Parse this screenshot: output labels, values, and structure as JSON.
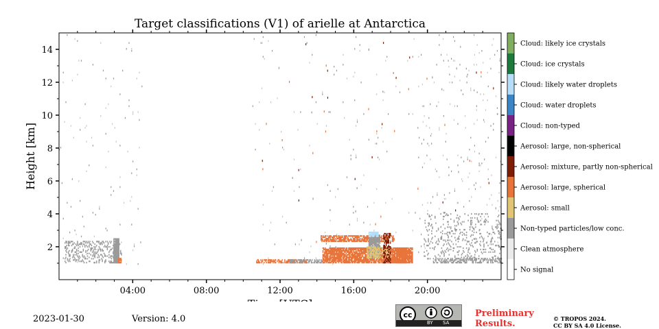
{
  "chart_data": {
    "type": "heatmap",
    "title": "Target classifications (V1) of arielle at Antarctica",
    "xlabel": "Time [UTC]",
    "ylabel": "Height [km]",
    "xlim_hours": [
      0,
      24
    ],
    "ylim_km": [
      0,
      15
    ],
    "xticks": [
      {
        "value": 4,
        "label": "04:00"
      },
      {
        "value": 8,
        "label": "08:00"
      },
      {
        "value": 12,
        "label": "12:00"
      },
      {
        "value": 16,
        "label": "16:00"
      },
      {
        "value": 20,
        "label": "20:00"
      }
    ],
    "yticks": [
      {
        "value": 2,
        "label": "2"
      },
      {
        "value": 4,
        "label": "4"
      },
      {
        "value": 6,
        "label": "6"
      },
      {
        "value": 8,
        "label": "8"
      },
      {
        "value": 10,
        "label": "10"
      },
      {
        "value": 12,
        "label": "12"
      },
      {
        "value": 14,
        "label": "14"
      }
    ],
    "legend": [
      {
        "label": "Cloud: likely ice crystals",
        "color": "#7fae5e"
      },
      {
        "label": "Cloud: ice crystals",
        "color": "#1b7a3c"
      },
      {
        "label": "Cloud: likely water droplets",
        "color": "#b6def8"
      },
      {
        "label": "Cloud: water droplets",
        "color": "#3a85c7"
      },
      {
        "label": "Cloud: non-typed",
        "color": "#7a2186"
      },
      {
        "label": "Aerosol: large, non-spherical",
        "color": "#000000"
      },
      {
        "label": "Aerosol: mixture, partly non-spherical",
        "color": "#7e1c06"
      },
      {
        "label": "Aerosol: large, spherical",
        "color": "#e9743a"
      },
      {
        "label": "Aerosol: small",
        "color": "#e1c575"
      },
      {
        "label": "Non-typed particles/low conc.",
        "color": "#9a9a9a"
      },
      {
        "label": "Clean atmosphere",
        "color": "#ebebeb"
      },
      {
        "label": "No signal",
        "color": "#ffffff"
      }
    ],
    "regions": [
      {
        "class": "Non-typed particles/low conc.",
        "t0": 0.3,
        "t1": 3.4,
        "h0": 1.0,
        "h1": 2.3,
        "density": 0.25
      },
      {
        "class": "Non-typed particles/low conc.",
        "t0": 2.95,
        "t1": 3.25,
        "h0": 1.0,
        "h1": 2.5,
        "density": 0.95
      },
      {
        "class": "Aerosol: large, spherical",
        "t0": 3.2,
        "t1": 3.35,
        "h0": 1.0,
        "h1": 1.3,
        "density": 0.9
      },
      {
        "class": "Aerosol: large, spherical",
        "t0": 10.7,
        "t1": 13.5,
        "h0": 1.0,
        "h1": 1.2,
        "density": 0.6
      },
      {
        "class": "Non-typed particles/low conc.",
        "t0": 12.5,
        "t1": 14.3,
        "h0": 1.0,
        "h1": 1.2,
        "density": 0.5
      },
      {
        "class": "Aerosol: large, spherical",
        "t0": 14.3,
        "t1": 19.2,
        "h0": 1.0,
        "h1": 1.9,
        "density": 0.85
      },
      {
        "class": "Aerosol: large, spherical",
        "t0": 14.2,
        "t1": 18.2,
        "h0": 2.3,
        "h1": 2.7,
        "density": 0.7
      },
      {
        "class": "Non-typed particles/low conc.",
        "t0": 16.8,
        "t1": 17.4,
        "h0": 1.3,
        "h1": 2.7,
        "density": 0.9
      },
      {
        "class": "Aerosol: small",
        "t0": 16.7,
        "t1": 17.9,
        "h0": 1.3,
        "h1": 2.0,
        "density": 0.6
      },
      {
        "class": "Cloud: likely water droplets",
        "t0": 16.8,
        "t1": 17.3,
        "h0": 2.6,
        "h1": 2.85,
        "density": 0.9
      },
      {
        "class": "Aerosol: mixture, partly non-spherical",
        "t0": 17.6,
        "t1": 18.0,
        "h0": 1.0,
        "h1": 2.8,
        "density": 0.45
      },
      {
        "class": "Aerosol: large, spherical",
        "t0": 18.3,
        "t1": 18.8,
        "h0": 1.0,
        "h1": 1.9,
        "density": 0.9
      },
      {
        "class": "Non-typed particles/low conc.",
        "t0": 19.8,
        "t1": 24.0,
        "h0": 1.0,
        "h1": 4.0,
        "density": 0.12
      },
      {
        "class": "Non-typed particles/low conc.",
        "t0": 20.3,
        "t1": 24.0,
        "h0": 1.0,
        "h1": 1.3,
        "density": 0.5
      }
    ]
  },
  "footer": {
    "date": "2023-01-30",
    "version": "Version: 4.0",
    "preliminary_line1": "Preliminary",
    "preliminary_line2": "Results.",
    "copyright_line1": "© TROPOS 2024.",
    "copyright_line2": "CC BY SA 4.0 License.",
    "cc_badge": {
      "by": "BY",
      "sa": "SA",
      "logo": "cc"
    }
  }
}
